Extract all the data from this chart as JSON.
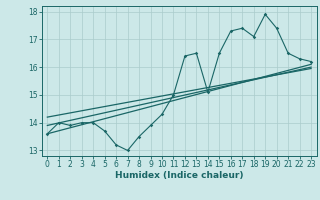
{
  "xlabel": "Humidex (Indice chaleur)",
  "ylabel": "",
  "xlim": [
    -0.5,
    23.5
  ],
  "ylim": [
    12.8,
    18.2
  ],
  "yticks": [
    13,
    14,
    15,
    16,
    17,
    18
  ],
  "xticks": [
    0,
    1,
    2,
    3,
    4,
    5,
    6,
    7,
    8,
    9,
    10,
    11,
    12,
    13,
    14,
    15,
    16,
    17,
    18,
    19,
    20,
    21,
    22,
    23
  ],
  "bg_color": "#cce8e8",
  "grid_color": "#aacccc",
  "line_color": "#1a6666",
  "line1_x": [
    0,
    1,
    2,
    3,
    4,
    5,
    6,
    7,
    8,
    9,
    10,
    11,
    12,
    13,
    14,
    15,
    16,
    17,
    18,
    19,
    20,
    21,
    22,
    23
  ],
  "line1_y": [
    13.6,
    14.0,
    13.9,
    14.0,
    14.0,
    13.7,
    13.2,
    13.0,
    13.5,
    13.9,
    14.3,
    15.0,
    16.4,
    16.5,
    15.1,
    16.5,
    17.3,
    17.4,
    17.1,
    17.9,
    17.4,
    16.5,
    16.3,
    16.2
  ],
  "line2_x": [
    0,
    23
  ],
  "line2_y": [
    13.6,
    16.1
  ],
  "line3_x": [
    0,
    23
  ],
  "line3_y": [
    13.9,
    16.0
  ],
  "line4_x": [
    0,
    23
  ],
  "line4_y": [
    14.2,
    15.95
  ]
}
